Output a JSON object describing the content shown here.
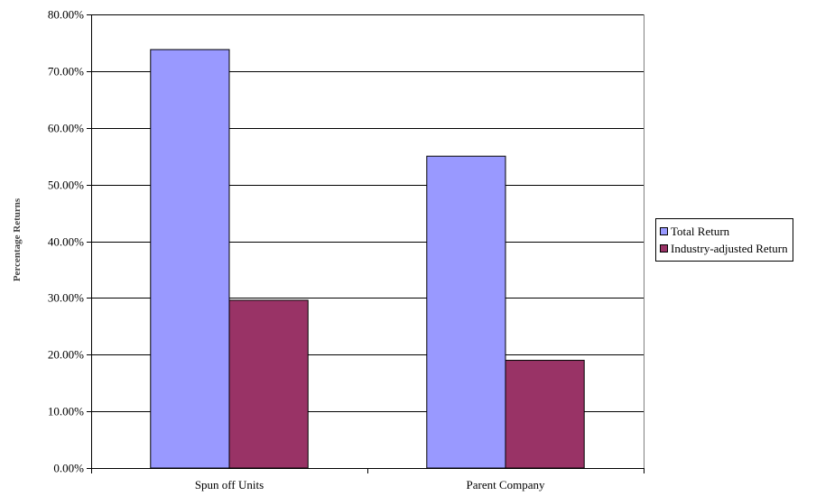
{
  "chart_data": {
    "type": "bar",
    "categories": [
      "Spun off Units",
      "Parent Company"
    ],
    "series": [
      {
        "name": "Total Return",
        "values": [
          73.8,
          55.0
        ],
        "color": "#9999ff"
      },
      {
        "name": "Industry-adjusted Return",
        "values": [
          29.6,
          19.0
        ],
        "color": "#993366"
      }
    ],
    "ylabel": "Percentage Returns",
    "ylim": [
      0,
      80
    ],
    "yticks": [
      "0.00%",
      "10.00%",
      "20.00%",
      "30.00%",
      "40.00%",
      "50.00%",
      "60.00%",
      "70.00%",
      "80.00%"
    ],
    "grid": true,
    "legend_position": "right"
  }
}
